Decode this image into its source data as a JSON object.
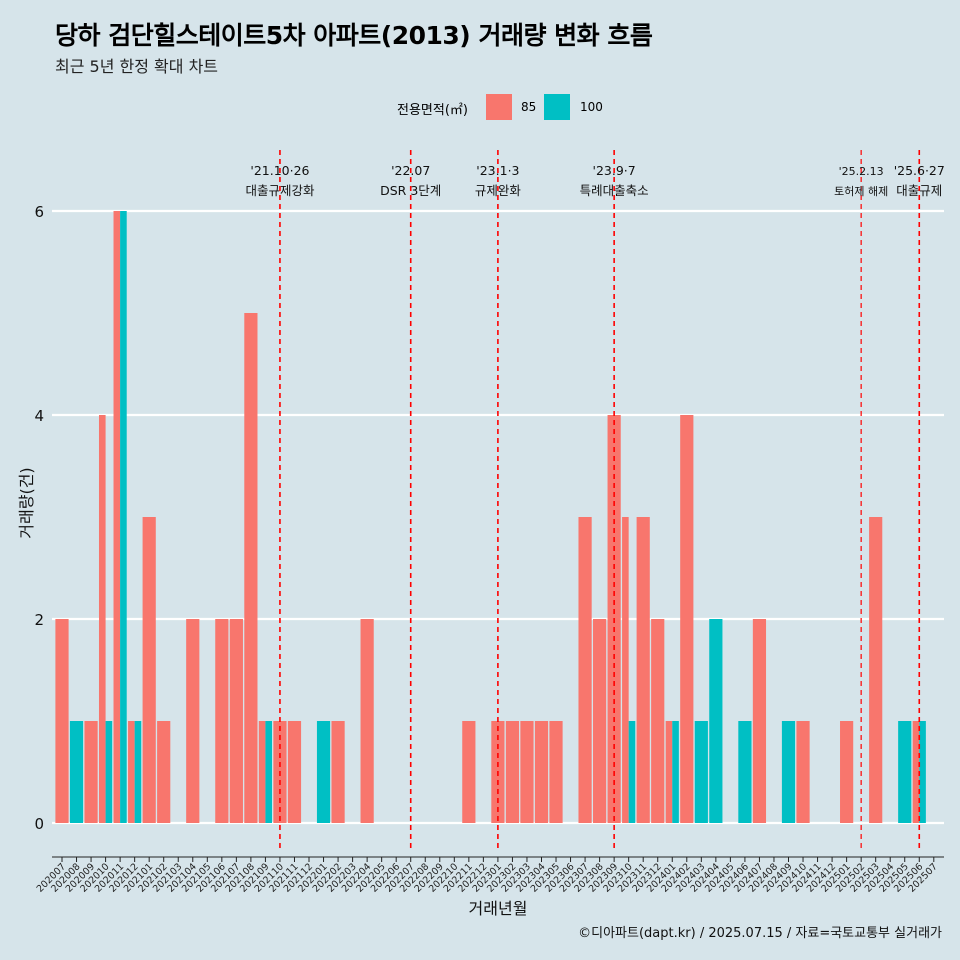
{
  "header": {
    "title": "당하 검단힐스테이트5차 아파트(2013) 거래량 변화 흐름",
    "subtitle": "최근 5년 한정 확대 차트"
  },
  "legend": {
    "title": "전용면적(㎡)",
    "items": [
      {
        "label": "85",
        "color": "#f8766d"
      },
      {
        "label": "100",
        "color": "#00bfc4"
      }
    ]
  },
  "caption": "©디아파트(dapt.kr) / 2025.07.15 / 자료=국토교통부 실거래가",
  "chart_data": {
    "type": "bar",
    "title": "당하 검단힐스테이트5차 아파트(2013) 거래량 변화 흐름",
    "xlabel": "거래년월",
    "ylabel": "거래량(건)",
    "ylim": [
      0,
      6
    ],
    "yticks": [
      0,
      2,
      4,
      6
    ],
    "categories": [
      "202007",
      "202008",
      "202009",
      "202010",
      "202011",
      "202012",
      "202101",
      "202102",
      "202103",
      "202104",
      "202105",
      "202106",
      "202107",
      "202108",
      "202109",
      "202110",
      "202111",
      "202112",
      "202201",
      "202202",
      "202203",
      "202204",
      "202205",
      "202206",
      "202207",
      "202208",
      "202209",
      "202210",
      "202211",
      "202212",
      "202301",
      "202302",
      "202303",
      "202304",
      "202305",
      "202306",
      "202307",
      "202308",
      "202309",
      "202310",
      "202311",
      "202312",
      "202401",
      "202402",
      "202403",
      "202404",
      "202405",
      "202406",
      "202407",
      "202408",
      "202409",
      "202410",
      "202411",
      "202412",
      "202501",
      "202502",
      "202503",
      "202504",
      "202505",
      "202506",
      "202507"
    ],
    "bars": [
      {
        "category": "202007",
        "area": "85",
        "value": 2
      },
      {
        "category": "202008",
        "area": "100",
        "value": 1
      },
      {
        "category": "202009",
        "area": "85",
        "value": 1
      },
      {
        "category": "202010",
        "area": "85",
        "value": 4
      },
      {
        "category": "202010",
        "area": "100",
        "value": 1
      },
      {
        "category": "202011",
        "area": "85",
        "value": 6
      },
      {
        "category": "202011",
        "area": "100",
        "value": 6
      },
      {
        "category": "202012",
        "area": "85",
        "value": 1
      },
      {
        "category": "202012",
        "area": "100",
        "value": 1
      },
      {
        "category": "202101",
        "area": "85",
        "value": 3
      },
      {
        "category": "202102",
        "area": "85",
        "value": 1
      },
      {
        "category": "202104",
        "area": "85",
        "value": 2
      },
      {
        "category": "202106",
        "area": "85",
        "value": 2
      },
      {
        "category": "202107",
        "area": "85",
        "value": 2
      },
      {
        "category": "202108",
        "area": "85",
        "value": 5
      },
      {
        "category": "202109",
        "area": "85",
        "value": 1
      },
      {
        "category": "202109",
        "area": "100",
        "value": 1
      },
      {
        "category": "202110",
        "area": "85",
        "value": 1
      },
      {
        "category": "202111",
        "area": "85",
        "value": 1
      },
      {
        "category": "202201",
        "area": "100",
        "value": 1
      },
      {
        "category": "202202",
        "area": "85",
        "value": 1
      },
      {
        "category": "202204",
        "area": "85",
        "value": 2
      },
      {
        "category": "202211",
        "area": "85",
        "value": 1
      },
      {
        "category": "202301",
        "area": "85",
        "value": 1
      },
      {
        "category": "202302",
        "area": "85",
        "value": 1
      },
      {
        "category": "202303",
        "area": "85",
        "value": 1
      },
      {
        "category": "202304",
        "area": "85",
        "value": 1
      },
      {
        "category": "202305",
        "area": "85",
        "value": 1
      },
      {
        "category": "202307",
        "area": "85",
        "value": 3
      },
      {
        "category": "202308",
        "area": "85",
        "value": 2
      },
      {
        "category": "202309",
        "area": "85",
        "value": 4
      },
      {
        "category": "202310",
        "area": "85",
        "value": 3
      },
      {
        "category": "202310",
        "area": "100",
        "value": 1
      },
      {
        "category": "202311",
        "area": "85",
        "value": 3
      },
      {
        "category": "202312",
        "area": "85",
        "value": 2
      },
      {
        "category": "202401",
        "area": "85",
        "value": 1
      },
      {
        "category": "202401",
        "area": "100",
        "value": 1
      },
      {
        "category": "202402",
        "area": "85",
        "value": 4
      },
      {
        "category": "202403",
        "area": "100",
        "value": 1
      },
      {
        "category": "202404",
        "area": "100",
        "value": 2
      },
      {
        "category": "202406",
        "area": "100",
        "value": 1
      },
      {
        "category": "202407",
        "area": "85",
        "value": 2
      },
      {
        "category": "202409",
        "area": "100",
        "value": 1
      },
      {
        "category": "202410",
        "area": "85",
        "value": 1
      },
      {
        "category": "202501",
        "area": "85",
        "value": 1
      },
      {
        "category": "202503",
        "area": "85",
        "value": 3
      },
      {
        "category": "202505",
        "area": "100",
        "value": 1
      },
      {
        "category": "202506",
        "area": "85",
        "value": 1
      },
      {
        "category": "202506",
        "area": "100",
        "value": 1
      }
    ],
    "events": [
      {
        "category": "202110",
        "date": "'21.10·26",
        "label": "대출규제강화",
        "small": false
      },
      {
        "category": "202207",
        "date": "'22.07",
        "label": "DSR 3단계",
        "small": false
      },
      {
        "category": "202301",
        "date": "'23.1·3",
        "label": "규제완화",
        "small": false
      },
      {
        "category": "202309",
        "date": "'23.9·7",
        "label": "특례대출축소",
        "small": false
      },
      {
        "category": "202502",
        "date": "'25.2.13",
        "label": "토허제 해제",
        "small": true
      },
      {
        "category": "202506",
        "date": "'25.6·27",
        "label": "대출규제",
        "small": false
      }
    ]
  }
}
